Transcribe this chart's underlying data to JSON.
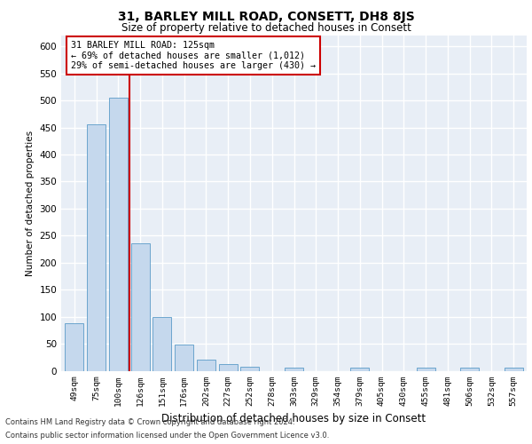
{
  "title": "31, BARLEY MILL ROAD, CONSETT, DH8 8JS",
  "subtitle": "Size of property relative to detached houses in Consett",
  "xlabel": "Distribution of detached houses by size in Consett",
  "ylabel": "Number of detached properties",
  "categories": [
    "49sqm",
    "75sqm",
    "100sqm",
    "126sqm",
    "151sqm",
    "176sqm",
    "202sqm",
    "227sqm",
    "252sqm",
    "278sqm",
    "303sqm",
    "329sqm",
    "354sqm",
    "379sqm",
    "405sqm",
    "430sqm",
    "455sqm",
    "481sqm",
    "506sqm",
    "532sqm",
    "557sqm"
  ],
  "values": [
    88,
    456,
    505,
    235,
    100,
    48,
    20,
    13,
    8,
    0,
    5,
    0,
    0,
    5,
    0,
    0,
    5,
    0,
    5,
    0,
    5
  ],
  "bar_color": "#c5d8ed",
  "bar_edge_color": "#5a9bc8",
  "vline_x": 2.5,
  "vline_color": "#cc0000",
  "annotation_line1": "31 BARLEY MILL ROAD: 125sqm",
  "annotation_line2": "← 69% of detached houses are smaller (1,012)",
  "annotation_line3": "29% of semi-detached houses are larger (430) →",
  "annotation_box_color": "white",
  "annotation_box_edge": "#cc0000",
  "background_color": "#e8eef6",
  "grid_color": "white",
  "footer_line1": "Contains HM Land Registry data © Crown copyright and database right 2024.",
  "footer_line2": "Contains public sector information licensed under the Open Government Licence v3.0.",
  "ylim": [
    0,
    620
  ],
  "yticks": [
    0,
    50,
    100,
    150,
    200,
    250,
    300,
    350,
    400,
    450,
    500,
    550,
    600
  ]
}
